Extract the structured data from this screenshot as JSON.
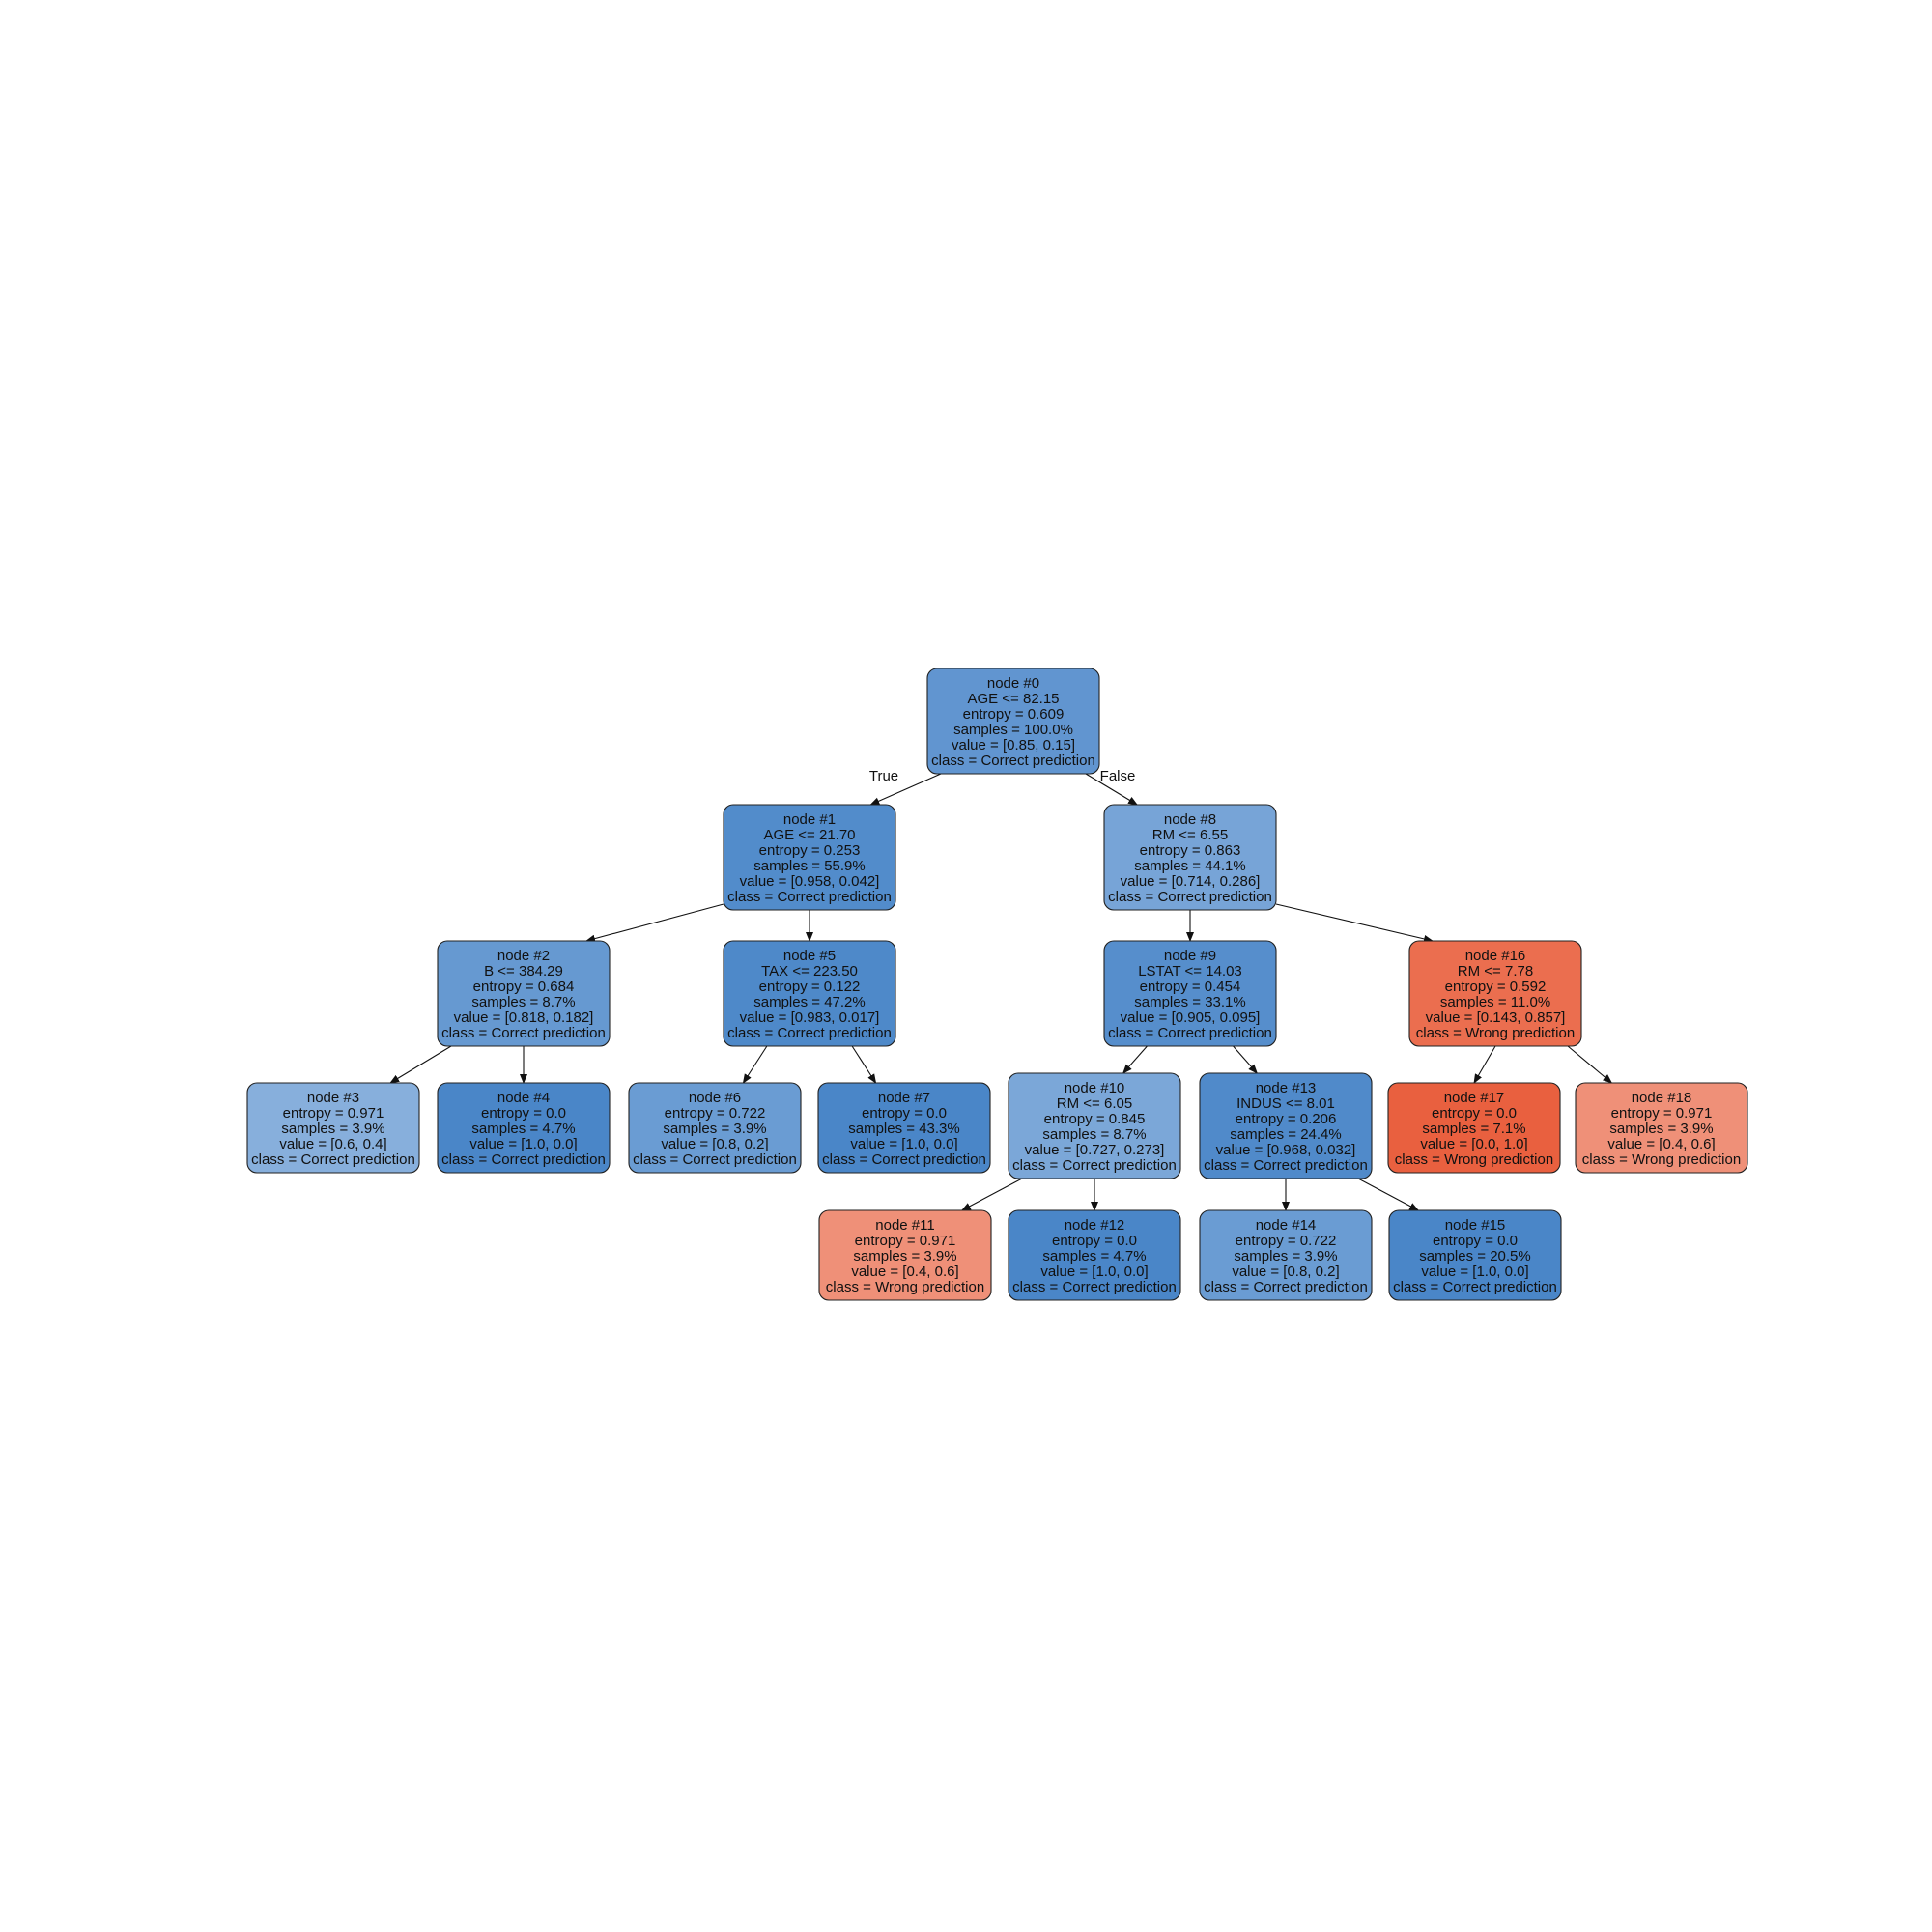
{
  "edge_labels": {
    "true": "True",
    "false": "False"
  },
  "colors": {
    "correct_deep": "#4a86c8",
    "correct_light": "#9bbde3",
    "wrong_deep": "#e9603f",
    "wrong_light": "#f2a591",
    "border": "#222222"
  },
  "nodes": [
    {
      "id": 0,
      "class": "correct",
      "shade": 0.72,
      "lines": [
        "node #0",
        "AGE <= 82.15",
        "entropy = 0.609",
        "samples = 100.0%",
        "value = [0.85, 0.15]",
        "class = Correct prediction"
      ]
    },
    {
      "id": 1,
      "class": "correct",
      "shade": 0.9,
      "lines": [
        "node #1",
        "AGE <= 21.70",
        "entropy = 0.253",
        "samples = 55.9%",
        "value = [0.958, 0.042]",
        "class = Correct prediction"
      ]
    },
    {
      "id": 2,
      "class": "correct",
      "shade": 0.65,
      "lines": [
        "node #2",
        "B <= 384.29",
        "entropy = 0.684",
        "samples = 8.7%",
        "value = [0.818, 0.182]",
        "class = Correct prediction"
      ]
    },
    {
      "id": 3,
      "class": "correct",
      "shade": 0.25,
      "lines": [
        "node #3",
        "entropy = 0.971",
        "samples = 3.9%",
        "value = [0.6, 0.4]",
        "class = Correct prediction"
      ]
    },
    {
      "id": 4,
      "class": "correct",
      "shade": 1.0,
      "lines": [
        "node #4",
        "entropy = 0.0",
        "samples = 4.7%",
        "value = [1.0, 0.0]",
        "class = Correct prediction"
      ]
    },
    {
      "id": 5,
      "class": "correct",
      "shade": 0.95,
      "lines": [
        "node #5",
        "TAX <= 223.50",
        "entropy = 0.122",
        "samples = 47.2%",
        "value = [0.983, 0.017]",
        "class = Correct prediction"
      ]
    },
    {
      "id": 6,
      "class": "correct",
      "shade": 0.6,
      "lines": [
        "node #6",
        "entropy = 0.722",
        "samples = 3.9%",
        "value = [0.8, 0.2]",
        "class = Correct prediction"
      ]
    },
    {
      "id": 7,
      "class": "correct",
      "shade": 1.0,
      "lines": [
        "node #7",
        "entropy = 0.0",
        "samples = 43.3%",
        "value = [1.0, 0.0]",
        "class = Correct prediction"
      ]
    },
    {
      "id": 8,
      "class": "correct",
      "shade": 0.45,
      "lines": [
        "node #8",
        "RM <= 6.55",
        "entropy = 0.863",
        "samples = 44.1%",
        "value = [0.714, 0.286]",
        "class = Correct prediction"
      ]
    },
    {
      "id": 9,
      "class": "correct",
      "shade": 0.85,
      "lines": [
        "node #9",
        "LSTAT <= 14.03",
        "entropy = 0.454",
        "samples = 33.1%",
        "value = [0.905, 0.095]",
        "class = Correct prediction"
      ]
    },
    {
      "id": 10,
      "class": "correct",
      "shade": 0.4,
      "lines": [
        "node #10",
        "RM <= 6.05",
        "entropy = 0.845",
        "samples = 8.7%",
        "value = [0.727, 0.273]",
        "class = Correct prediction"
      ]
    },
    {
      "id": 11,
      "class": "wrong",
      "shade": 0.3,
      "lines": [
        "node #11",
        "entropy = 0.971",
        "samples = 3.9%",
        "value = [0.4, 0.6]",
        "class = Wrong prediction"
      ]
    },
    {
      "id": 12,
      "class": "correct",
      "shade": 1.0,
      "lines": [
        "node #12",
        "entropy = 0.0",
        "samples = 4.7%",
        "value = [1.0, 0.0]",
        "class = Correct prediction"
      ]
    },
    {
      "id": 13,
      "class": "correct",
      "shade": 0.92,
      "lines": [
        "node #13",
        "INDUS <= 8.01",
        "entropy = 0.206",
        "samples = 24.4%",
        "value = [0.968, 0.032]",
        "class = Correct prediction"
      ]
    },
    {
      "id": 14,
      "class": "correct",
      "shade": 0.6,
      "lines": [
        "node #14",
        "entropy = 0.722",
        "samples = 3.9%",
        "value = [0.8, 0.2]",
        "class = Correct prediction"
      ]
    },
    {
      "id": 15,
      "class": "correct",
      "shade": 1.0,
      "lines": [
        "node #15",
        "entropy = 0.0",
        "samples = 20.5%",
        "value = [1.0, 0.0]",
        "class = Correct prediction"
      ]
    },
    {
      "id": 16,
      "class": "wrong",
      "shade": 0.8,
      "lines": [
        "node #16",
        "RM <= 7.78",
        "entropy = 0.592",
        "samples = 11.0%",
        "value = [0.143, 0.857]",
        "class = Wrong prediction"
      ]
    },
    {
      "id": 17,
      "class": "wrong",
      "shade": 1.0,
      "lines": [
        "node #17",
        "entropy = 0.0",
        "samples = 7.1%",
        "value = [0.0, 1.0]",
        "class = Wrong prediction"
      ]
    },
    {
      "id": 18,
      "class": "wrong",
      "shade": 0.3,
      "lines": [
        "node #18",
        "entropy = 0.971",
        "samples = 3.9%",
        "value = [0.4, 0.6]",
        "class = Wrong prediction"
      ]
    }
  ],
  "edges": [
    {
      "from": 0,
      "to": 1,
      "label": "true"
    },
    {
      "from": 0,
      "to": 8,
      "label": "false"
    },
    {
      "from": 1,
      "to": 2
    },
    {
      "from": 1,
      "to": 5
    },
    {
      "from": 2,
      "to": 3
    },
    {
      "from": 2,
      "to": 4
    },
    {
      "from": 5,
      "to": 6
    },
    {
      "from": 5,
      "to": 7
    },
    {
      "from": 8,
      "to": 9
    },
    {
      "from": 8,
      "to": 16
    },
    {
      "from": 9,
      "to": 10
    },
    {
      "from": 9,
      "to": 13
    },
    {
      "from": 10,
      "to": 11
    },
    {
      "from": 10,
      "to": 12
    },
    {
      "from": 13,
      "to": 14
    },
    {
      "from": 13,
      "to": 15
    },
    {
      "from": 16,
      "to": 17
    },
    {
      "from": 16,
      "to": 18
    }
  ]
}
